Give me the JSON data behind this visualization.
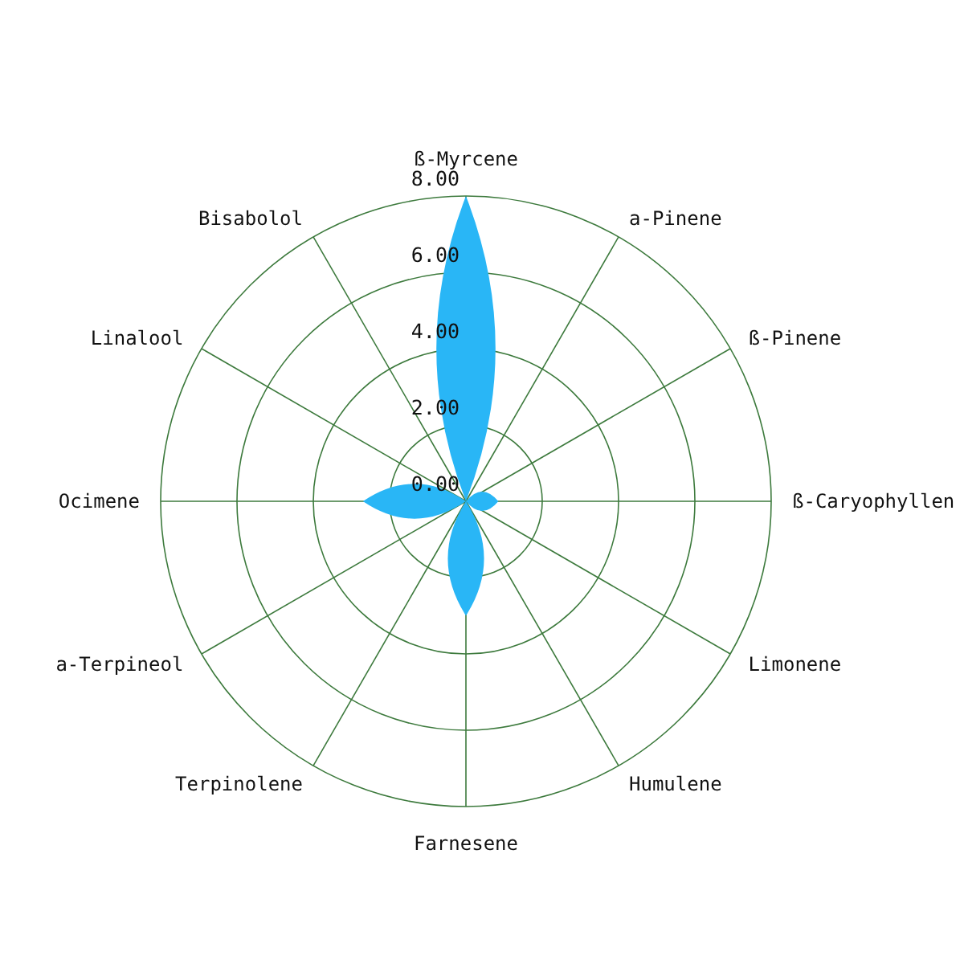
{
  "chart_data": {
    "type": "radar",
    "categories": [
      "ß-Myrcene",
      "a-Pinene",
      "ß-Pinene",
      "ß-Caryophyllen",
      "Limonene",
      "Humulene",
      "Farnesene",
      "Terpinolene",
      "a-Terpineol",
      "Ocimene",
      "Linalool",
      "Bisabolol"
    ],
    "series": [
      {
        "color": "#29b6f6",
        "values": [
          8.0,
          0,
          0,
          0.85,
          0,
          0,
          3.0,
          0,
          0,
          2.7,
          0,
          0
        ]
      }
    ],
    "ylim": [
      0,
      8
    ],
    "yticks": [
      {
        "value": 0,
        "label": "0.00"
      },
      {
        "value": 2,
        "label": "2.00"
      },
      {
        "value": 4,
        "label": "4.00"
      },
      {
        "value": 6,
        "label": "6.00"
      },
      {
        "value": 8,
        "label": "8.00"
      }
    ],
    "grid": true
  }
}
